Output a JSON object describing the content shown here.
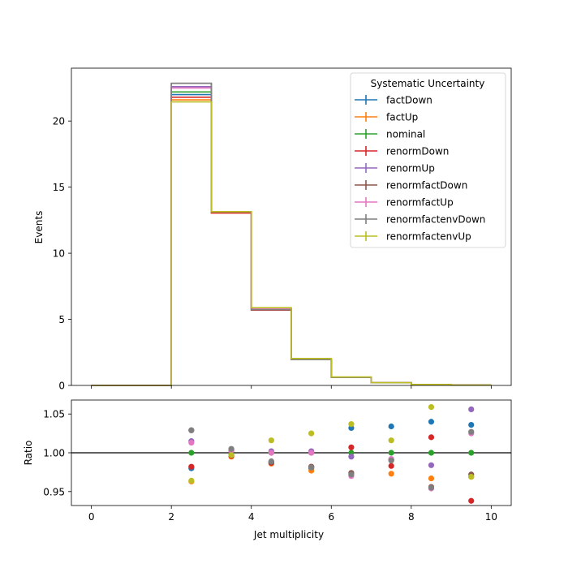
{
  "chart_data": [
    {
      "type": "line",
      "step": true,
      "ylabel": "Events",
      "xlim": [
        -0.5,
        10.5
      ],
      "ylim": [
        0,
        24
      ],
      "yticks": [
        0,
        5,
        10,
        15,
        20
      ],
      "bin_edges": [
        0,
        1,
        2,
        3,
        4,
        5,
        6,
        7,
        8,
        9,
        10
      ],
      "legend": {
        "title": "Systematic Uncertainty",
        "placement": "top-right"
      },
      "series": [
        {
          "name": "factDown",
          "color": "#1f77b4",
          "values": [
            0,
            0,
            22.0,
            13.1,
            5.75,
            1.97,
            0.62,
            0.21,
            0.07,
            0.025
          ]
        },
        {
          "name": "factUp",
          "color": "#ff7f0e",
          "values": [
            0,
            0,
            21.6,
            13.05,
            5.72,
            1.95,
            0.61,
            0.2,
            0.066,
            0.024
          ]
        },
        {
          "name": "nominal",
          "color": "#2ca02c",
          "values": [
            0,
            0,
            22.2,
            13.1,
            5.8,
            1.99,
            0.62,
            0.21,
            0.068,
            0.025
          ]
        },
        {
          "name": "renormDown",
          "color": "#d62728",
          "values": [
            0,
            0,
            21.8,
            13.05,
            5.7,
            1.96,
            0.62,
            0.2,
            0.07,
            0.024
          ]
        },
        {
          "name": "renormUp",
          "color": "#9467bd",
          "values": [
            0,
            0,
            22.6,
            13.15,
            5.81,
            1.99,
            0.61,
            0.21,
            0.067,
            0.026
          ]
        },
        {
          "name": "renormfactDown",
          "color": "#8c564b",
          "values": [
            0,
            0,
            22.85,
            13.12,
            5.73,
            1.95,
            0.6,
            0.2,
            0.065,
            0.024
          ]
        },
        {
          "name": "renormfactUp",
          "color": "#e377c2",
          "values": [
            0,
            0,
            22.5,
            13.14,
            5.8,
            1.99,
            0.62,
            0.21,
            0.068,
            0.025
          ]
        },
        {
          "name": "renormfactenvDown",
          "color": "#7f7f7f",
          "values": [
            0,
            0,
            22.85,
            13.12,
            5.73,
            1.95,
            0.6,
            0.2,
            0.065,
            0.025
          ]
        },
        {
          "name": "renormfactenvUp",
          "color": "#bcbd22",
          "values": [
            0,
            0,
            21.45,
            13.15,
            5.88,
            2.04,
            0.64,
            0.21,
            0.072,
            0.024
          ]
        }
      ]
    },
    {
      "type": "scatter",
      "xlabel": "Jet multiplicity",
      "ylabel": "Ratio",
      "xlim": [
        -0.5,
        10.5
      ],
      "ylim": [
        0.932,
        1.068
      ],
      "xticks": [
        0,
        2,
        4,
        6,
        8,
        10
      ],
      "yticks": [
        0.95,
        1.0,
        1.05
      ],
      "reference_line": 1.0,
      "x": [
        2.5,
        3.5,
        4.5,
        5.5,
        6.5,
        7.5,
        8.5,
        9.5
      ],
      "series": [
        {
          "name": "factDown",
          "color": "#1f77b4",
          "values": [
            0.98,
            0.997,
            0.988,
            0.98,
            1.032,
            1.034,
            1.04,
            1.036
          ]
        },
        {
          "name": "factUp",
          "color": "#ff7f0e",
          "values": [
            0.963,
            0.995,
            0.986,
            0.977,
            0.973,
            0.973,
            0.967,
            0.969
          ]
        },
        {
          "name": "nominal",
          "color": "#2ca02c",
          "values": [
            1.0,
            1.0,
            1.0,
            1.0,
            1.0,
            1.0,
            1.0,
            1.0
          ]
        },
        {
          "name": "renormDown",
          "color": "#d62728",
          "values": [
            0.982,
            0.996,
            0.987,
            0.982,
            1.007,
            0.983,
            1.02,
            0.938
          ]
        },
        {
          "name": "renormUp",
          "color": "#9467bd",
          "values": [
            1.015,
            1.004,
            1.002,
            1.002,
            0.995,
            0.991,
            0.984,
            1.056
          ]
        },
        {
          "name": "renormfactDown",
          "color": "#8c564b",
          "values": [
            1.029,
            1.002,
            0.988,
            0.982,
            0.974,
            0.991,
            0.956,
            0.972
          ]
        },
        {
          "name": "renormfactUp",
          "color": "#e377c2",
          "values": [
            1.013,
            1.003,
            1.0,
            1.0,
            0.97,
            0.992,
            0.954,
            1.025
          ]
        },
        {
          "name": "renormfactenvDown",
          "color": "#7f7f7f",
          "values": [
            1.029,
            1.005,
            0.989,
            0.981,
            0.972,
            0.99,
            0.955,
            1.027
          ]
        },
        {
          "name": "renormfactenvUp",
          "color": "#bcbd22",
          "values": [
            0.964,
            0.997,
            1.016,
            1.025,
            1.037,
            1.016,
            1.059,
            0.969
          ]
        }
      ]
    }
  ]
}
